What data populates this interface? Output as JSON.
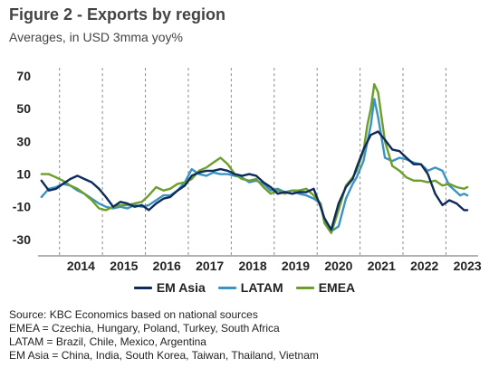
{
  "header": {
    "title": "Figure 2 - Exports by region",
    "subtitle": "Averages, in USD 3mma yoy%"
  },
  "notes": [
    "Source: KBC Economics based on national sources",
    "EMEA = Czechia, Hungary, Poland, Turkey, South Africa",
    "LATAM = Brazil, Chile, Mexico, Argentina",
    "EM Asia = China, India, South Korea, Taiwan, Thailand, Vietnam"
  ],
  "chart_data": {
    "type": "line",
    "ylim": [
      -40,
      75
    ],
    "yticks": [
      70,
      50,
      30,
      10,
      -10,
      -30
    ],
    "xlim": [
      2013.5,
      2023.75
    ],
    "year_ticks": [
      "2014",
      "2015",
      "2016",
      "2017",
      "2018",
      "2019",
      "2020",
      "2021",
      "2022",
      "2023"
    ],
    "gridlines": "vertical dashed at year boundaries",
    "legend_position": "bottom",
    "series": [
      {
        "name": "EM Asia",
        "color": "#0f2b5b",
        "points": [
          [
            2013.58,
            6
          ],
          [
            2013.75,
            0
          ],
          [
            2013.92,
            1
          ],
          [
            2014.08,
            4
          ],
          [
            2014.25,
            7
          ],
          [
            2014.42,
            9
          ],
          [
            2014.58,
            7
          ],
          [
            2014.75,
            5
          ],
          [
            2014.92,
            1
          ],
          [
            2015.08,
            -4
          ],
          [
            2015.25,
            -10
          ],
          [
            2015.42,
            -7
          ],
          [
            2015.58,
            -8
          ],
          [
            2015.75,
            -10
          ],
          [
            2015.92,
            -9
          ],
          [
            2016.08,
            -12
          ],
          [
            2016.25,
            -8
          ],
          [
            2016.42,
            -5
          ],
          [
            2016.58,
            -4
          ],
          [
            2016.75,
            0
          ],
          [
            2016.92,
            3
          ],
          [
            2017.08,
            9
          ],
          [
            2017.25,
            11
          ],
          [
            2017.42,
            12
          ],
          [
            2017.58,
            12
          ],
          [
            2017.75,
            13
          ],
          [
            2017.92,
            12
          ],
          [
            2018.08,
            10
          ],
          [
            2018.25,
            9
          ],
          [
            2018.42,
            10
          ],
          [
            2018.58,
            9
          ],
          [
            2018.75,
            5
          ],
          [
            2018.92,
            2
          ],
          [
            2019.08,
            -2
          ],
          [
            2019.25,
            -1
          ],
          [
            2019.42,
            -2
          ],
          [
            2019.58,
            -1
          ],
          [
            2019.75,
            -1
          ],
          [
            2019.92,
            1
          ],
          [
            2020.08,
            -10
          ],
          [
            2020.17,
            -17
          ],
          [
            2020.33,
            -24
          ],
          [
            2020.5,
            -8
          ],
          [
            2020.67,
            2
          ],
          [
            2020.83,
            7
          ],
          [
            2020.92,
            14
          ],
          [
            2021.08,
            25
          ],
          [
            2021.25,
            34
          ],
          [
            2021.42,
            36
          ],
          [
            2021.58,
            31
          ],
          [
            2021.75,
            25
          ],
          [
            2021.92,
            24
          ],
          [
            2022.08,
            20
          ],
          [
            2022.25,
            16
          ],
          [
            2022.42,
            16
          ],
          [
            2022.58,
            10
          ],
          [
            2022.75,
            -2
          ],
          [
            2022.92,
            -9
          ],
          [
            2023.08,
            -6
          ],
          [
            2023.25,
            -8
          ],
          [
            2023.42,
            -12
          ],
          [
            2023.5,
            -12
          ]
        ]
      },
      {
        "name": "LATAM",
        "color": "#3a93c3",
        "points": [
          [
            2013.58,
            -4
          ],
          [
            2013.75,
            1
          ],
          [
            2013.92,
            2
          ],
          [
            2014.08,
            4
          ],
          [
            2014.25,
            3
          ],
          [
            2014.42,
            0
          ],
          [
            2014.58,
            -2
          ],
          [
            2014.75,
            -5
          ],
          [
            2014.92,
            -8
          ],
          [
            2015.08,
            -10
          ],
          [
            2015.25,
            -11
          ],
          [
            2015.42,
            -10
          ],
          [
            2015.58,
            -11
          ],
          [
            2015.75,
            -9
          ],
          [
            2015.92,
            -10
          ],
          [
            2016.08,
            -9
          ],
          [
            2016.25,
            -6
          ],
          [
            2016.42,
            -3
          ],
          [
            2016.58,
            -3
          ],
          [
            2016.75,
            0
          ],
          [
            2016.92,
            5
          ],
          [
            2017.08,
            13
          ],
          [
            2017.25,
            10
          ],
          [
            2017.42,
            9
          ],
          [
            2017.58,
            11
          ],
          [
            2017.75,
            10
          ],
          [
            2017.92,
            10
          ],
          [
            2018.08,
            9
          ],
          [
            2018.25,
            8
          ],
          [
            2018.42,
            5
          ],
          [
            2018.58,
            6
          ],
          [
            2018.75,
            4
          ],
          [
            2018.92,
            0
          ],
          [
            2019.08,
            1
          ],
          [
            2019.25,
            -1
          ],
          [
            2019.42,
            0
          ],
          [
            2019.58,
            -2
          ],
          [
            2019.75,
            -3
          ],
          [
            2019.92,
            -5
          ],
          [
            2020.08,
            -8
          ],
          [
            2020.17,
            -18
          ],
          [
            2020.33,
            -25
          ],
          [
            2020.5,
            -22
          ],
          [
            2020.67,
            -5
          ],
          [
            2020.83,
            4
          ],
          [
            2020.92,
            8
          ],
          [
            2021.08,
            18
          ],
          [
            2021.25,
            40
          ],
          [
            2021.33,
            56
          ],
          [
            2021.42,
            45
          ],
          [
            2021.58,
            20
          ],
          [
            2021.75,
            18
          ],
          [
            2021.92,
            20
          ],
          [
            2022.08,
            19
          ],
          [
            2022.25,
            17
          ],
          [
            2022.42,
            16
          ],
          [
            2022.58,
            12
          ],
          [
            2022.75,
            14
          ],
          [
            2022.92,
            12
          ],
          [
            2023.08,
            3
          ],
          [
            2023.25,
            -1
          ],
          [
            2023.33,
            -3
          ],
          [
            2023.42,
            -2
          ],
          [
            2023.5,
            -3
          ]
        ]
      },
      {
        "name": "EMEA",
        "color": "#6b9e2a",
        "points": [
          [
            2013.58,
            10
          ],
          [
            2013.75,
            10
          ],
          [
            2013.92,
            8
          ],
          [
            2014.08,
            6
          ],
          [
            2014.25,
            3
          ],
          [
            2014.42,
            1
          ],
          [
            2014.58,
            -2
          ],
          [
            2014.75,
            -6
          ],
          [
            2014.92,
            -11
          ],
          [
            2015.08,
            -12
          ],
          [
            2015.25,
            -10
          ],
          [
            2015.42,
            -9
          ],
          [
            2015.58,
            -9
          ],
          [
            2015.75,
            -8
          ],
          [
            2015.92,
            -7
          ],
          [
            2016.08,
            -3
          ],
          [
            2016.25,
            2
          ],
          [
            2016.42,
            0
          ],
          [
            2016.58,
            1
          ],
          [
            2016.75,
            4
          ],
          [
            2016.92,
            5
          ],
          [
            2017.08,
            7
          ],
          [
            2017.25,
            12
          ],
          [
            2017.42,
            14
          ],
          [
            2017.58,
            17
          ],
          [
            2017.75,
            20
          ],
          [
            2017.92,
            16
          ],
          [
            2018.08,
            10
          ],
          [
            2018.25,
            7
          ],
          [
            2018.42,
            6
          ],
          [
            2018.58,
            7
          ],
          [
            2018.75,
            2
          ],
          [
            2018.92,
            -2
          ],
          [
            2019.08,
            0
          ],
          [
            2019.25,
            -2
          ],
          [
            2019.42,
            0
          ],
          [
            2019.58,
            0
          ],
          [
            2019.75,
            1
          ],
          [
            2019.92,
            -3
          ],
          [
            2020.08,
            -8
          ],
          [
            2020.17,
            -20
          ],
          [
            2020.33,
            -26
          ],
          [
            2020.5,
            -12
          ],
          [
            2020.67,
            3
          ],
          [
            2020.83,
            8
          ],
          [
            2020.92,
            12
          ],
          [
            2021.08,
            24
          ],
          [
            2021.17,
            40
          ],
          [
            2021.25,
            50
          ],
          [
            2021.33,
            65
          ],
          [
            2021.42,
            60
          ],
          [
            2021.58,
            30
          ],
          [
            2021.75,
            15
          ],
          [
            2021.92,
            12
          ],
          [
            2022.08,
            8
          ],
          [
            2022.25,
            6
          ],
          [
            2022.42,
            6
          ],
          [
            2022.58,
            5
          ],
          [
            2022.75,
            6
          ],
          [
            2022.92,
            3
          ],
          [
            2023.08,
            4
          ],
          [
            2023.25,
            2
          ],
          [
            2023.42,
            1
          ],
          [
            2023.5,
            2
          ]
        ]
      }
    ]
  }
}
